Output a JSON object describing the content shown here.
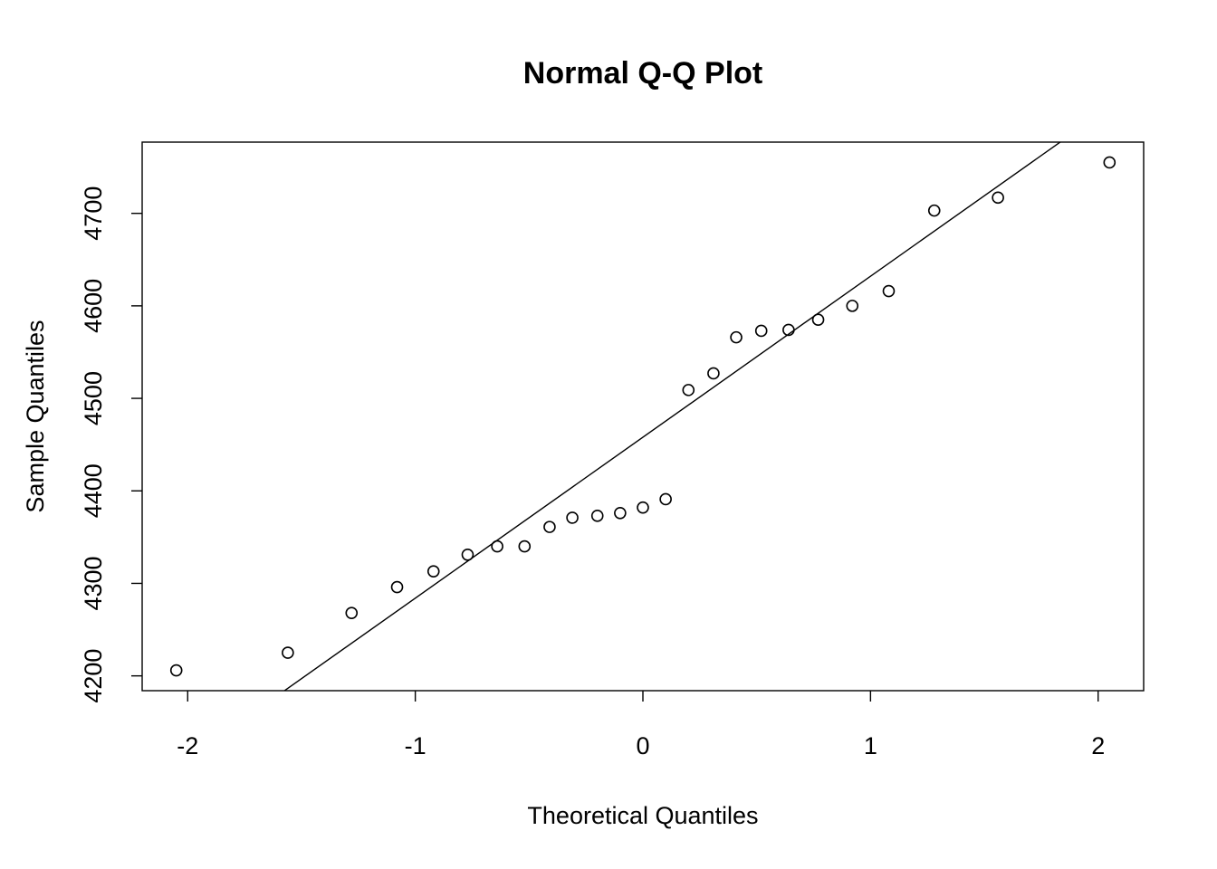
{
  "chart_data": {
    "type": "scatter",
    "title": "Normal Q-Q Plot",
    "xlabel": "Theoretical Quantiles",
    "ylabel": "Sample Quantiles",
    "xlim": [
      -2.2,
      2.2
    ],
    "ylim": [
      4184,
      4777
    ],
    "x_ticks": [
      -2,
      -1,
      0,
      1,
      2
    ],
    "x_tick_labels": [
      "-2",
      "-1",
      "0",
      "1",
      "2"
    ],
    "y_ticks": [
      4200,
      4300,
      4400,
      4500,
      4600,
      4700
    ],
    "y_tick_labels": [
      "4200",
      "4300",
      "4400",
      "4500",
      "4600",
      "4700"
    ],
    "grid": false,
    "legend": false,
    "points": [
      {
        "x": -2.05,
        "y": 4206
      },
      {
        "x": -1.56,
        "y": 4225
      },
      {
        "x": -1.28,
        "y": 4268
      },
      {
        "x": -1.08,
        "y": 4296
      },
      {
        "x": -0.92,
        "y": 4313
      },
      {
        "x": -0.77,
        "y": 4331
      },
      {
        "x": -0.64,
        "y": 4340
      },
      {
        "x": -0.52,
        "y": 4340
      },
      {
        "x": -0.41,
        "y": 4361
      },
      {
        "x": -0.31,
        "y": 4371
      },
      {
        "x": -0.2,
        "y": 4373
      },
      {
        "x": -0.1,
        "y": 4376
      },
      {
        "x": 0.0,
        "y": 4382
      },
      {
        "x": 0.1,
        "y": 4391
      },
      {
        "x": 0.2,
        "y": 4509
      },
      {
        "x": 0.31,
        "y": 4527
      },
      {
        "x": 0.41,
        "y": 4566
      },
      {
        "x": 0.52,
        "y": 4573
      },
      {
        "x": 0.64,
        "y": 4574
      },
      {
        "x": 0.77,
        "y": 4585
      },
      {
        "x": 0.92,
        "y": 4600
      },
      {
        "x": 1.08,
        "y": 4616
      },
      {
        "x": 1.28,
        "y": 4703
      },
      {
        "x": 1.56,
        "y": 4717
      },
      {
        "x": 2.05,
        "y": 4755
      }
    ],
    "reference_line": {
      "intercept": 4458,
      "slope": 174
    }
  }
}
